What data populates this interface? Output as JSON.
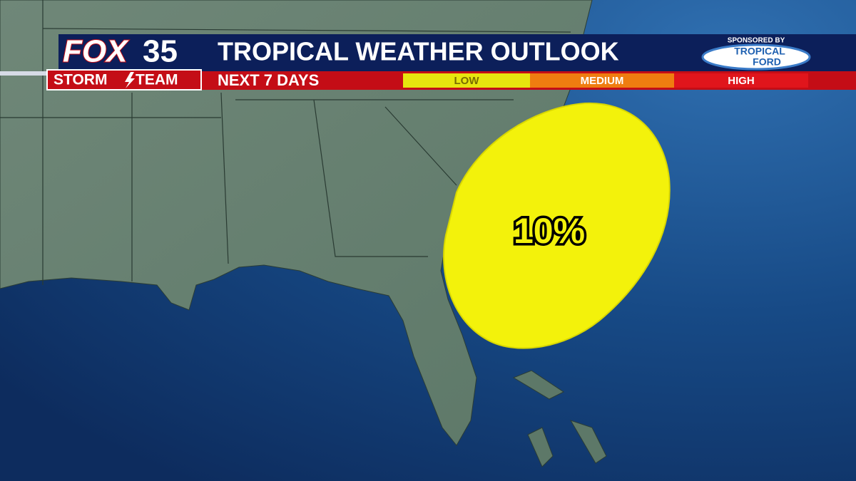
{
  "header": {
    "brand": "FOX",
    "channel": "35",
    "team_left": "STORM",
    "team_right": "TEAM",
    "title": "TROPICAL WEATHER OUTLOOK",
    "subtitle": "NEXT 7 DAYS"
  },
  "legend": {
    "levels": [
      "LOW",
      "MEDIUM",
      "HIGH"
    ]
  },
  "sponsor": {
    "label": "SPONSORED BY",
    "name_top": "TROPICAL",
    "name_bottom": "FORD"
  },
  "outlook_area": {
    "label": "10%"
  }
}
